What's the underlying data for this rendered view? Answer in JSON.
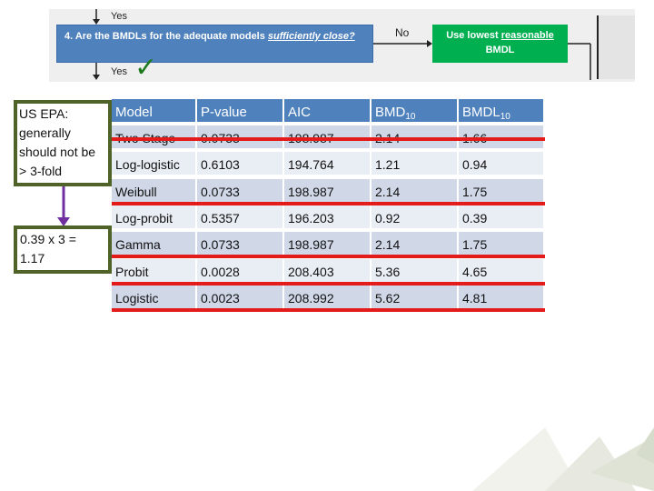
{
  "flowchart": {
    "question_prefix": "4. Are the BMDLs for the adequate models ",
    "question_emph": "sufficiently close?",
    "yes_top": "Yes",
    "yes_bottom": "Yes",
    "no_label": "No",
    "outcome_prefix": "Use lowest ",
    "outcome_link": "reasonable",
    "outcome_suffix": "BMDL",
    "checkmark": "✓"
  },
  "notes": {
    "epa_lines": [
      "US EPA:",
      "generally",
      "should not be",
      "> 3-fold"
    ],
    "calc_lines": [
      "0.39 x 3 =",
      "1.17"
    ]
  },
  "table": {
    "headers": [
      "Model",
      "P-value",
      "AIC",
      "BMD",
      "BMDL"
    ],
    "header_subscripts": [
      "",
      "",
      "",
      "10",
      "10"
    ],
    "rows": [
      {
        "model": "Two Stage",
        "p": "0.0733",
        "aic": "198.987",
        "bmd": "2.14",
        "bmdl": "1.66",
        "struck": true
      },
      {
        "model": "Log-logistic",
        "p": "0.6103",
        "aic": "194.764",
        "bmd": "1.21",
        "bmdl": "0.94",
        "struck": false
      },
      {
        "model": "Weibull",
        "p": "0.0733",
        "aic": "198.987",
        "bmd": "2.14",
        "bmdl": "1.75",
        "struck": true
      },
      {
        "model": "Log-probit",
        "p": "0.5357",
        "aic": "196.203",
        "bmd": "0.92",
        "bmdl": "0.39",
        "struck": false
      },
      {
        "model": "Gamma",
        "p": "0.0733",
        "aic": "198.987",
        "bmd": "2.14",
        "bmdl": "1.75",
        "struck": true
      },
      {
        "model": "Probit",
        "p": "0.0028",
        "aic": "208.403",
        "bmd": "5.36",
        "bmdl": "4.65",
        "struck": true
      },
      {
        "model": "Logistic",
        "p": "0.0023",
        "aic": "208.992",
        "bmd": "5.62",
        "bmdl": "4.81",
        "struck": true
      }
    ]
  },
  "colors": {
    "header_blue": "#4f81bd",
    "outcome_green": "#00b050",
    "strike_red": "#e31b1b",
    "note_border": "#4f6228",
    "arrow_purple": "#7030a0"
  }
}
